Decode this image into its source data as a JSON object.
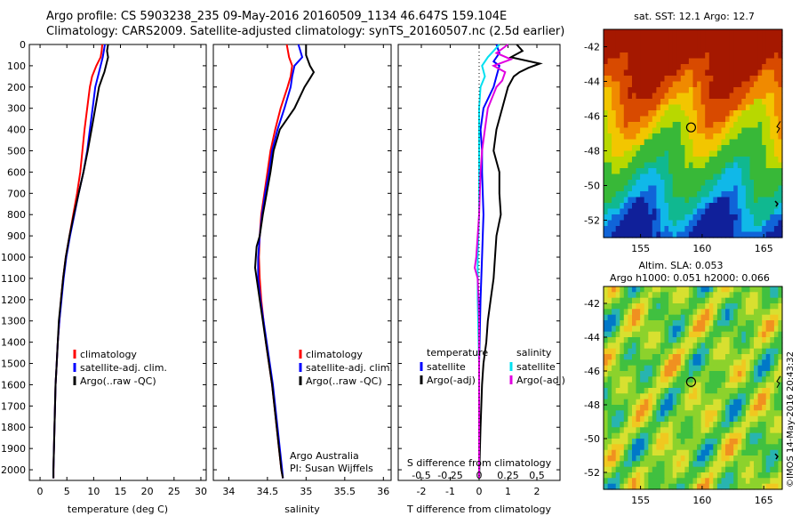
{
  "header": {
    "title_line1": "Argo profile: CS 5903238_235 09-May-2016 20160509_1134 46.647S 159.104E",
    "title_line2": "Climatology: CARS2009. Satellite-adjusted climatology: synTS_20160507.nc (2.5d earlier)"
  },
  "credit": {
    "line1": "Argo Australia",
    "line2": "PI: Susan Wijffels",
    "stamp": "©IMOS 14-May-2016 20:43:32"
  },
  "colors": {
    "climatology": "#ff0000",
    "satellite": "#0000ff",
    "argo": "#000000",
    "sal_satellite": "#00e0f0",
    "sal_argo": "#e000e0"
  },
  "chart_data": [
    {
      "type": "line",
      "id": "temperature",
      "xlabel": "temperature (deg C)",
      "xlim": [
        -2,
        31
      ],
      "ylim": [
        0,
        2050
      ],
      "xticks": [
        0,
        5,
        10,
        15,
        20,
        25,
        30
      ],
      "yticks": [
        0,
        100,
        200,
        300,
        400,
        500,
        600,
        700,
        800,
        900,
        1000,
        1100,
        1200,
        1300,
        1400,
        1500,
        1600,
        1700,
        1800,
        1900,
        2000
      ],
      "y_reversed": true,
      "legend": [
        "climatology",
        "satellite-adj. clim.",
        "Argo(..raw -QC)"
      ],
      "series": [
        {
          "name": "climatology",
          "color": "#ff0000",
          "depth": [
            0,
            30,
            60,
            100,
            150,
            200,
            300,
            400,
            500,
            600,
            700,
            800,
            900,
            1000,
            1100,
            1200,
            1300,
            1400,
            1500,
            1600,
            1700,
            1800,
            1900,
            2000,
            2040
          ],
          "values": [
            11.6,
            11.5,
            11.3,
            10.5,
            9.7,
            9.3,
            8.8,
            8.3,
            7.9,
            7.5,
            6.9,
            6.2,
            5.5,
            4.8,
            4.3,
            3.9,
            3.6,
            3.3,
            3.1,
            2.9,
            2.8,
            2.7,
            2.6,
            2.5,
            2.5
          ]
        },
        {
          "name": "satellite-adj. clim.",
          "color": "#0000ff",
          "depth": [
            0,
            30,
            60,
            100,
            150,
            200,
            300,
            400,
            500,
            600,
            700,
            800,
            900,
            1000,
            1100,
            1200,
            1300,
            1400,
            1500,
            1600,
            1700,
            1800,
            1900,
            2000,
            2040
          ],
          "values": [
            12.1,
            11.9,
            11.7,
            11.3,
            10.8,
            10.3,
            9.8,
            9.3,
            8.8,
            8.1,
            7.2,
            6.4,
            5.6,
            4.9,
            4.4,
            4.0,
            3.6,
            3.3,
            3.1,
            2.9,
            2.8,
            2.7,
            2.6,
            2.5,
            2.5
          ]
        },
        {
          "name": "Argo(..raw -QC)",
          "color": "#000000",
          "depth": [
            0,
            30,
            60,
            100,
            130,
            150,
            200,
            300,
            400,
            500,
            600,
            700,
            800,
            900,
            1000,
            1100,
            1200,
            1300,
            1400,
            1500,
            1600,
            1700,
            1800,
            1900,
            2000,
            2040
          ],
          "values": [
            12.7,
            12.5,
            12.7,
            12.3,
            12.0,
            11.7,
            11.0,
            10.3,
            9.6,
            8.9,
            8.1,
            7.2,
            6.3,
            5.5,
            4.8,
            4.3,
            3.9,
            3.5,
            3.3,
            3.1,
            2.9,
            2.8,
            2.7,
            2.6,
            2.5,
            2.5
          ]
        }
      ]
    },
    {
      "type": "line",
      "id": "salinity",
      "xlabel": "salinity",
      "xlim": [
        33.8,
        36.1
      ],
      "ylim": [
        0,
        2050
      ],
      "xticks": [
        34,
        34.5,
        35,
        35.5,
        36
      ],
      "y_reversed": true,
      "legend": [
        "climatology",
        "satellite-adj. clim.",
        "Argo(..raw -QC)"
      ],
      "series": [
        {
          "name": "climatology",
          "color": "#ff0000",
          "depth": [
            0,
            60,
            100,
            150,
            200,
            300,
            400,
            500,
            600,
            700,
            800,
            900,
            1000,
            1100,
            1200,
            1300,
            1400,
            1500,
            1600,
            1700,
            1800,
            1900,
            2000,
            2040
          ],
          "values": [
            34.75,
            34.78,
            34.82,
            34.8,
            34.76,
            34.67,
            34.6,
            34.54,
            34.5,
            34.46,
            34.42,
            34.4,
            34.39,
            34.4,
            34.42,
            34.45,
            34.48,
            34.52,
            34.56,
            34.59,
            34.62,
            34.65,
            34.68,
            34.7
          ]
        },
        {
          "name": "satellite-adj. clim.",
          "color": "#0000ff",
          "depth": [
            0,
            60,
            100,
            150,
            200,
            300,
            400,
            500,
            600,
            700,
            800,
            900,
            1000,
            1100,
            1200,
            1300,
            1400,
            1500,
            1600,
            1700,
            1800,
            1900,
            2000,
            2040
          ],
          "values": [
            34.9,
            34.95,
            34.85,
            34.82,
            34.8,
            34.72,
            34.63,
            34.56,
            34.52,
            34.47,
            34.43,
            34.4,
            34.38,
            34.38,
            34.41,
            34.45,
            34.49,
            34.53,
            34.57,
            34.6,
            34.63,
            34.66,
            34.69,
            34.7
          ]
        },
        {
          "name": "Argo(..raw -QC)",
          "color": "#000000",
          "depth": [
            0,
            50,
            100,
            130,
            160,
            200,
            300,
            400,
            500,
            600,
            700,
            800,
            900,
            950,
            1000,
            1050,
            1100,
            1200,
            1300,
            1400,
            1500,
            1600,
            1700,
            1800,
            1900,
            2000,
            2040
          ],
          "values": [
            35.0,
            35.0,
            35.05,
            35.1,
            35.05,
            34.98,
            34.85,
            34.66,
            34.58,
            34.54,
            34.49,
            34.44,
            34.4,
            34.36,
            34.35,
            34.34,
            34.36,
            34.4,
            34.44,
            34.48,
            34.52,
            34.56,
            34.59,
            34.62,
            34.65,
            34.68,
            34.7
          ]
        }
      ]
    },
    {
      "type": "line",
      "id": "difference",
      "xlabel": "T difference from climatology",
      "xlabel2": "S difference from climatology",
      "xlim": [
        -2.8,
        2.8
      ],
      "ylim": [
        0,
        2050
      ],
      "xticks": [
        -2,
        -1,
        0,
        1,
        2
      ],
      "xticks2": [
        -0.5,
        -0.25,
        0,
        0.25,
        0.5
      ],
      "xticks2_labels": [
        "-0.5",
        "-0.25",
        "0",
        "0.25",
        "0.5"
      ],
      "y_reversed": true,
      "legend_temperature_heading": "temperature",
      "legend_salinity_heading": "salinity",
      "legend": [
        "satellite",
        "Argo(-adj)",
        "satellite",
        "Argo(-adj)"
      ],
      "series": [
        {
          "name": "T satellite",
          "color": "#0000ff",
          "depth": [
            0,
            40,
            80,
            100,
            150,
            200,
            300,
            400,
            500,
            600,
            800,
            1000,
            1200,
            1500,
            1800,
            2040
          ],
          "values": [
            0.6,
            0.7,
            0.5,
            0.7,
            0.6,
            0.5,
            0.15,
            0.05,
            0.1,
            0.1,
            0.15,
            0.1,
            0.05,
            0.0,
            0.0,
            0.0
          ]
        },
        {
          "name": "T Argo(-adj)",
          "color": "#000000",
          "depth": [
            0,
            30,
            60,
            90,
            110,
            130,
            150,
            200,
            300,
            400,
            500,
            600,
            700,
            800,
            900,
            1000,
            1100,
            1200,
            1300,
            1400,
            1500,
            1600,
            1800,
            2040
          ],
          "values": [
            1.3,
            1.5,
            1.1,
            2.1,
            1.7,
            1.4,
            1.2,
            1.0,
            0.8,
            0.6,
            0.5,
            0.7,
            0.7,
            0.75,
            0.6,
            0.55,
            0.5,
            0.4,
            0.3,
            0.25,
            0.15,
            0.1,
            0.05,
            0.0
          ]
        },
        {
          "name": "S satellite",
          "color": "#00e0f0",
          "depth": [
            0,
            30,
            60,
            100,
            150,
            200,
            300,
            400,
            600,
            800,
            1000,
            1200,
            1500,
            1800,
            2040
          ],
          "values": [
            0.7,
            0.5,
            0.3,
            0.1,
            0.2,
            0.05,
            0.0,
            0.0,
            0.0,
            0.0,
            -0.05,
            -0.05,
            0.0,
            0.0,
            0.0
          ]
        },
        {
          "name": "S Argo(-adj)",
          "color": "#e000e0",
          "depth": [
            0,
            40,
            70,
            100,
            130,
            170,
            200,
            300,
            400,
            500,
            600,
            800,
            1000,
            1050,
            1100,
            1200,
            1300,
            1400,
            1500,
            1800,
            2040
          ],
          "values": [
            1.0,
            0.6,
            1.1,
            0.5,
            0.9,
            0.8,
            0.6,
            0.3,
            0.2,
            0.1,
            0.05,
            0.0,
            -0.1,
            -0.15,
            -0.05,
            -0.02,
            0.0,
            0.0,
            0.0,
            0.0,
            0.0
          ]
        }
      ]
    },
    {
      "type": "heatmap",
      "id": "sst_map",
      "title": "sat. SST: 12.1  Argo: 12.7",
      "xlim": [
        152,
        166.5
      ],
      "ylim": [
        -53,
        -41
      ],
      "xticks": [
        155,
        160,
        165
      ],
      "yticks": [
        -42,
        -44,
        -46,
        -48,
        -50,
        -52
      ],
      "marker": {
        "lon": 159.1,
        "lat": -46.65
      }
    },
    {
      "type": "heatmap",
      "id": "sla_map",
      "title": "Altim. SLA: 0.053",
      "subtitle": "Argo h1000: 0.051  h2000: 0.066",
      "xlim": [
        152,
        166.5
      ],
      "ylim": [
        -53,
        -41
      ],
      "xticks": [
        155,
        160,
        165
      ],
      "yticks": [
        -42,
        -44,
        -46,
        -48,
        -50,
        -52
      ],
      "marker": {
        "lon": 159.1,
        "lat": -46.65
      }
    }
  ]
}
